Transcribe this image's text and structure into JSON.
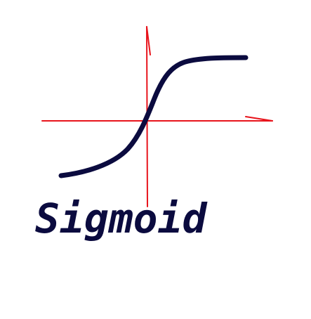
{
  "caption": {
    "text": "Sigmoid"
  },
  "colors": {
    "background": "#ffffff",
    "axes": "#e8141c",
    "curve": "#0b0b3f",
    "caption": "#0b0b3f"
  }
}
